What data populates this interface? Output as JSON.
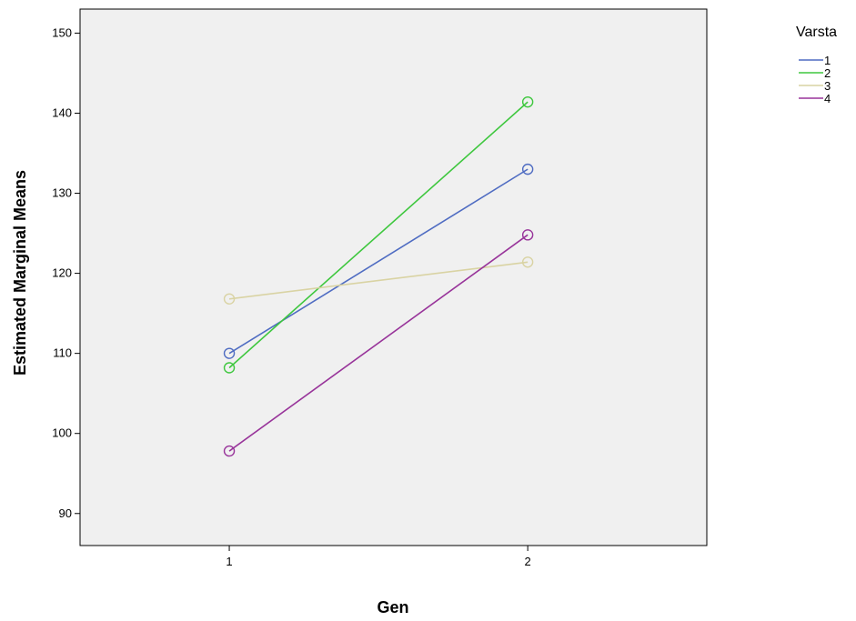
{
  "chart_data": {
    "type": "line",
    "title": "",
    "xlabel": "Gen",
    "ylabel": "Estimated Marginal Means",
    "x": [
      1,
      2
    ],
    "x_tick_labels": [
      "1",
      "2"
    ],
    "xlim": [
      0.5,
      2.6
    ],
    "ylim": [
      86,
      153
    ],
    "y_ticks": [
      90,
      100,
      110,
      120,
      130,
      140,
      150
    ],
    "grid": false,
    "marker": "open-circle",
    "legend": {
      "title": "Varsta",
      "placement": "top-right"
    },
    "plot_background": "#f0f0f0",
    "series": [
      {
        "name": "1",
        "color": "#4f6cc2",
        "values": [
          110.0,
          133.0
        ]
      },
      {
        "name": "2",
        "color": "#3ec73e",
        "values": [
          108.2,
          141.4
        ]
      },
      {
        "name": "3",
        "color": "#d9d3a3",
        "values": [
          116.8,
          121.4
        ]
      },
      {
        "name": "4",
        "color": "#98349a",
        "values": [
          97.8,
          124.8
        ]
      }
    ]
  }
}
